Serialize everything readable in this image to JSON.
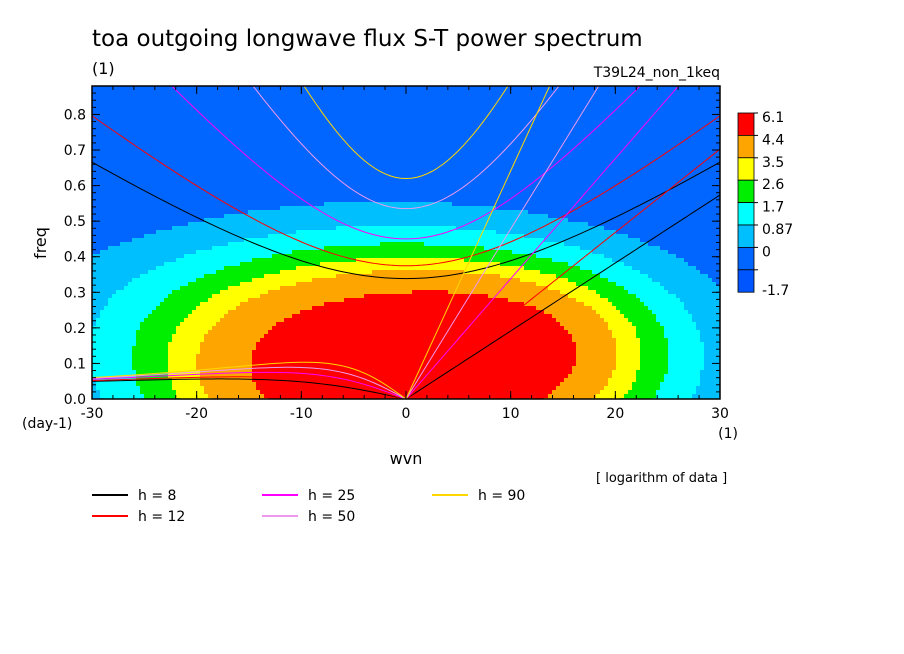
{
  "chart_data": {
    "type": "heatmap",
    "title": "toa outgoing longwave flux S-T power spectrum",
    "subtitle_units": "(1)",
    "run_label": "T39L24_non_1keq",
    "xlabel": "wvn",
    "ylabel": "freq",
    "y_units": "(day-1)",
    "x_units": "(1)",
    "data_note": "[ logarithm of data ]",
    "xlim": [
      -30,
      30
    ],
    "ylim": [
      0,
      0.88
    ],
    "x_ticks": [
      "-30",
      "-20",
      "-10",
      "0",
      "10",
      "20",
      "30"
    ],
    "y_ticks": [
      "0.0",
      "0.1",
      "0.2",
      "0.3",
      "0.4",
      "0.5",
      "0.6",
      "0.7",
      "0.8"
    ],
    "colorbar": {
      "labels": [
        "6.1",
        "4.4",
        "3.5",
        "2.6",
        "1.7",
        "0.87",
        "0",
        "-1.7"
      ],
      "colors": [
        "#ff0000",
        "#ffa500",
        "#ffff00",
        "#00ee00",
        "#00ffff",
        "#00bfff",
        "#0066ff",
        "#0055ff"
      ]
    },
    "contour_levels": [
      -1.7,
      0,
      0.87,
      1.7,
      2.6,
      3.5,
      4.4,
      6.1
    ],
    "dispersion_curves": [
      {
        "label": "h =  8",
        "h": 8,
        "color": "#000000"
      },
      {
        "label": "h = 12",
        "h": 12,
        "color": "#ff0000"
      },
      {
        "label": "h = 25",
        "h": 25,
        "color": "#ff00ff"
      },
      {
        "label": "h = 50",
        "h": 50,
        "color": "#ee99ee"
      },
      {
        "label": "h = 90",
        "h": 90,
        "color": "#ffd700"
      }
    ]
  }
}
